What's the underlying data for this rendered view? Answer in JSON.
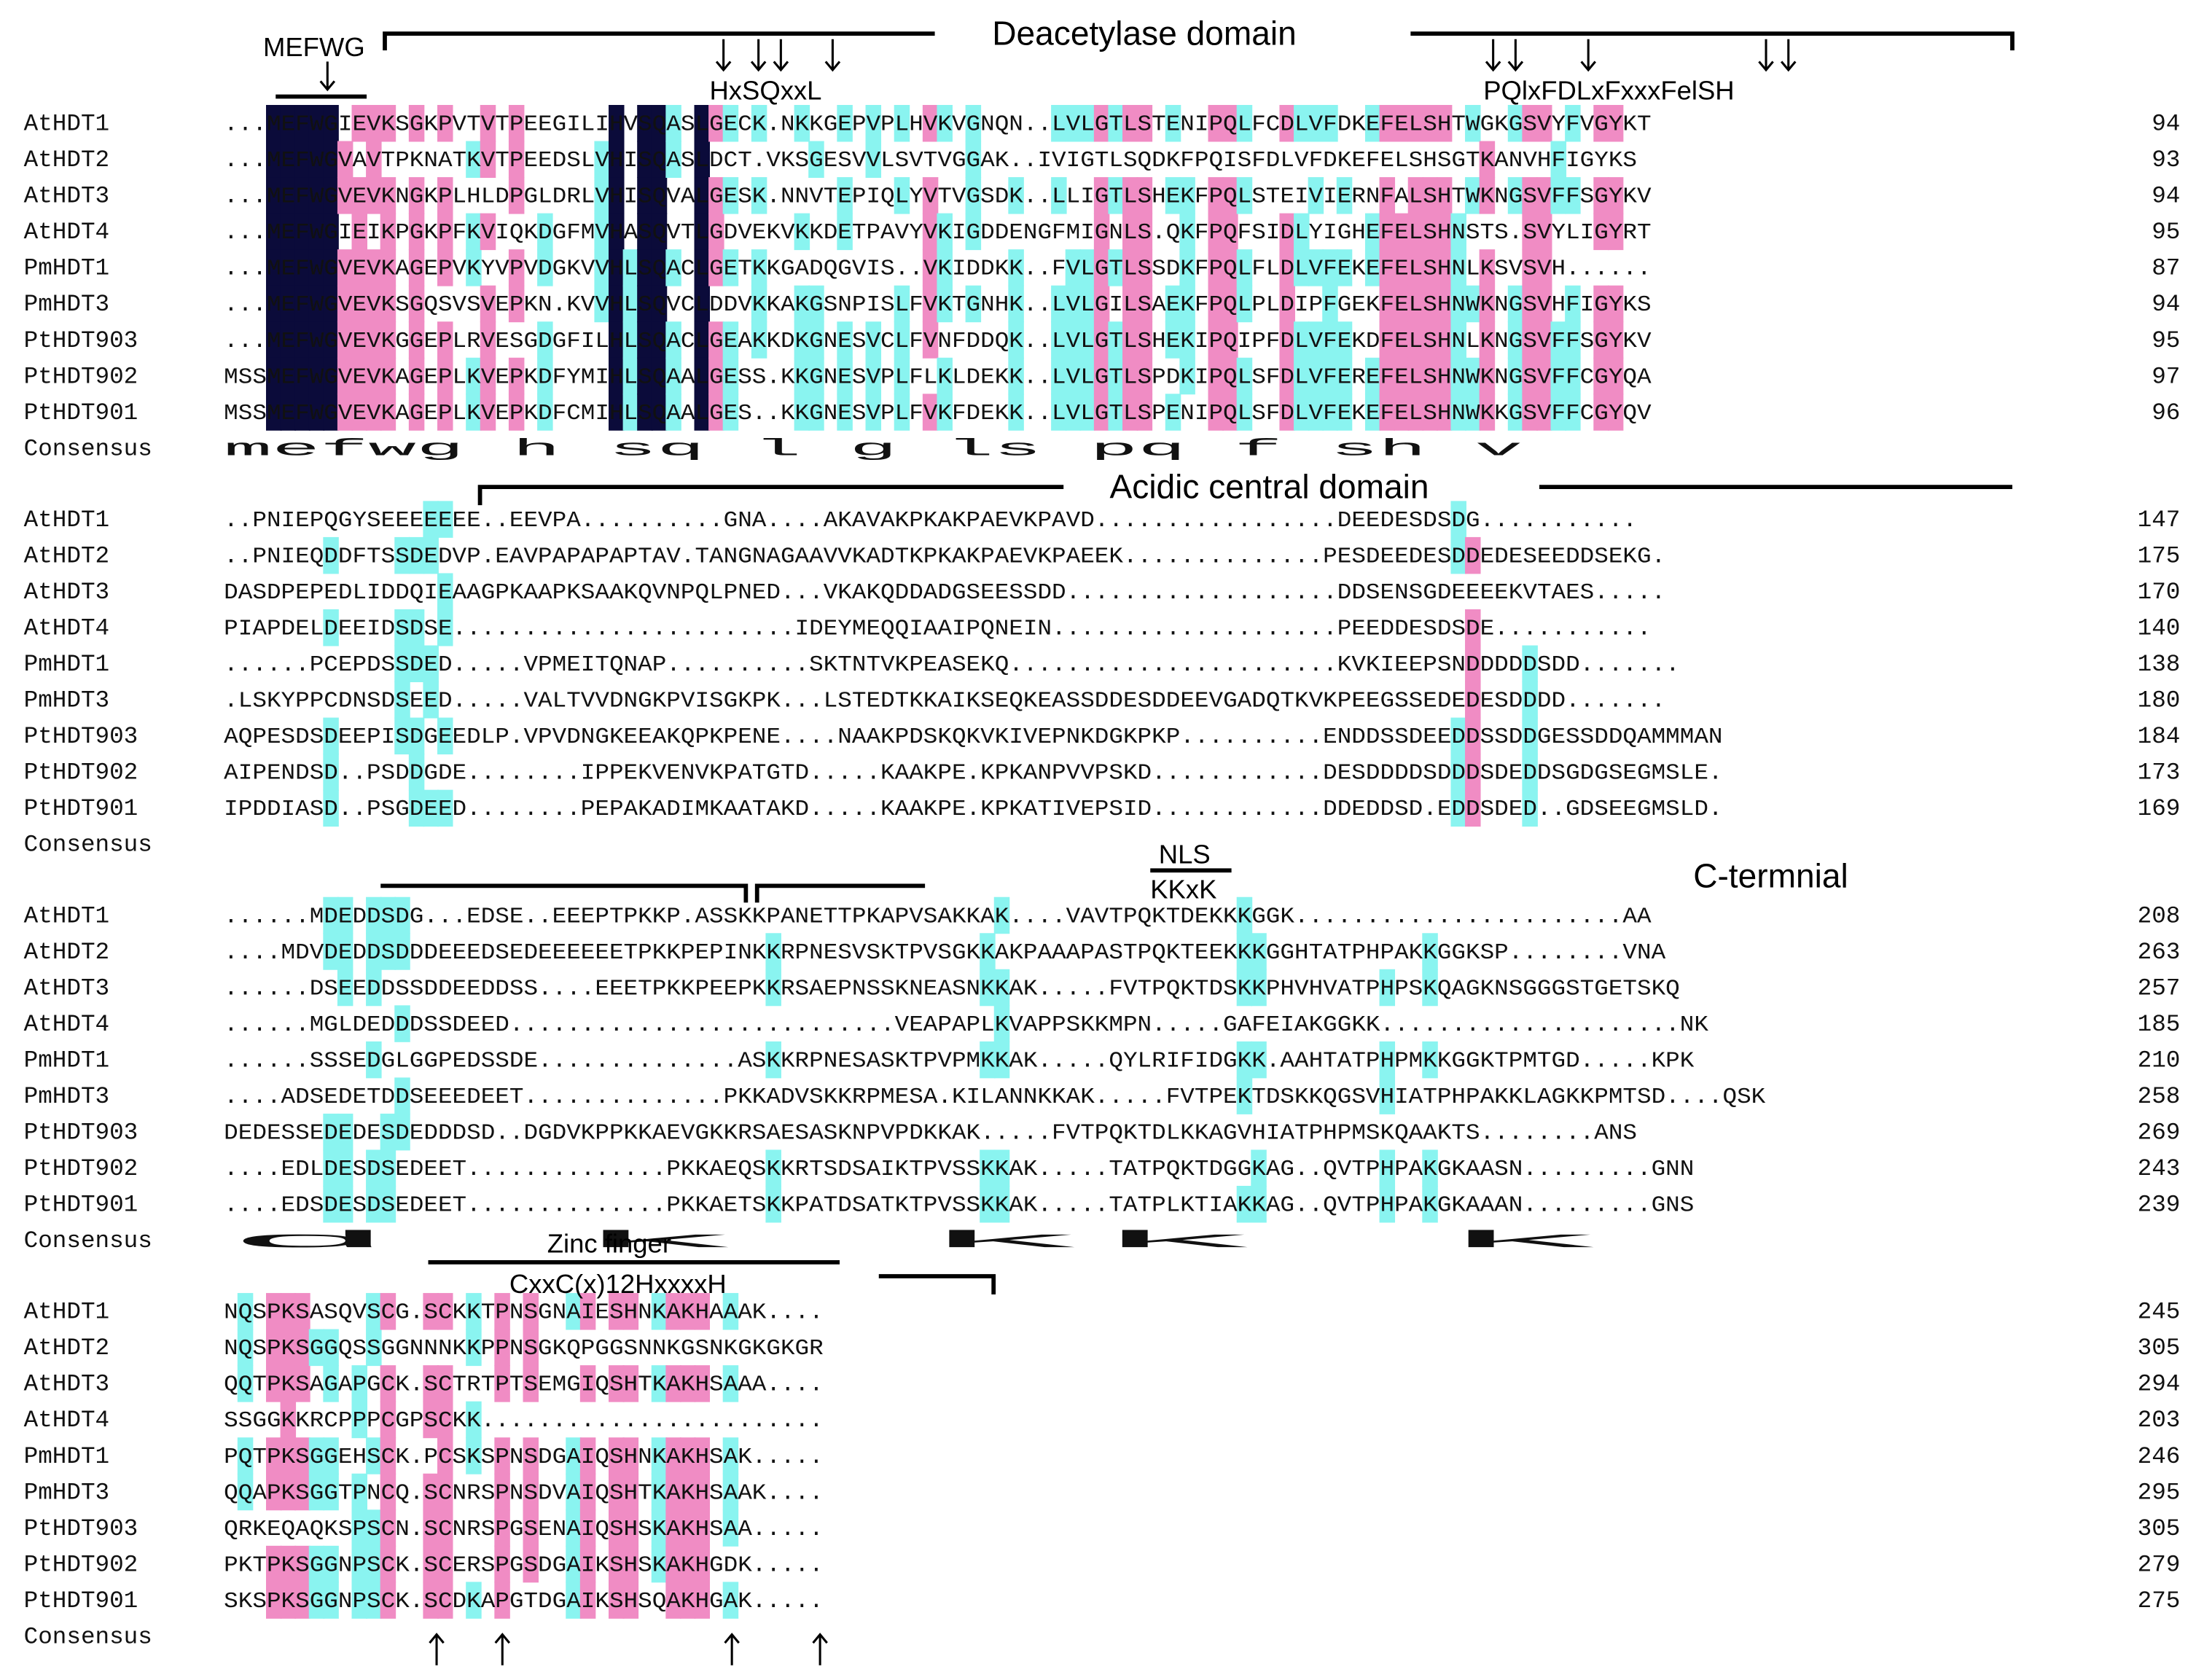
{
  "colors": {
    "black": "#0b0b3a",
    "pink": "#f08cc4",
    "cyan": "#8af4f0"
  },
  "names": [
    "AtHDT1",
    "AtHDT2",
    "AtHDT3",
    "AtHDT4",
    "PmHDT1",
    "PmHDT3",
    "PtHDT903",
    "PtHDT902",
    "PtHDT901"
  ],
  "consensus_label": "Consensus",
  "blocks": [
    {
      "id": "block1",
      "rows": [
        "...MEFWGIEVKSGKPVTVTPEEGILIHVSQASLGECK.NKKGEPVPLHVKVGNQN..LVLGTLSTENIPQLFCDLVFDKEFELSHTWGKGSVYFVGYKT",
        "...MEFWGVAVTPKNATKVTPEEDSLVHISQASLDCT.VKSGESVVLSVTVGGAK..IVIGTLSQDKFPQISFDLVFDKEFELSHSGTKANVHFIGYKS",
        "...MEFWGVEVKNGKPLHLDPGLDRLVHISQVALGESK.NNVTEPIQLYVTVGSDK..LLIGTLSHEKFPQLSTEIVIERNFALSHTWKNGSVFFSGYKV",
        "...MEFWGIEIKPGKPFKVIQKDGFMVHASQVTLGDVEKVKKDETPAVYVKIGDDENGFMIGNLS.QKFPQFSIDLYIGHEFELSHNSTS.SVYLIGYRT",
        "...MEFWGVEVKAGEPVKYVPVDGKVVHLSQACLGETKKGADQGVIS..VKIDDKK..FVLGTLSSDKFPQLFLDLVFEKEFELSHNLKSVSVH......",
        "...MEFWGVEVKSGQSVSVEPKN.KVVHLSQVCLDDVKKAKGSNPISLFVKTGNHK..LVLGILSAEKFPQLPLDIPFGEKFELSHNWKNGSVHFIGYKS",
        "...MEFWGVEVKGGEPLRVESGDGFILHLSQACLGEAKKDKGNESVCLFVNFDDQK..LVLGTLSHEKIPQIPFDLVFEKDFELSHNLKNGSVFFSGYKV",
        "MSSMEFWGVEVKAGEPLKVEPKDFYMIHLSQAALGESS.KKGNESVPLFLKLDEKK..LVLGTLSPDKIPQLSFDLVFEREFELSHNWKNGSVFFCGYQA",
        "MSSMEFWGVEVKAGEPLKVEPKDFCMIHLSQAALGES..KKGNESVPLFVKFDEKK..LVLGTLSPENIPQLSFDLVFEKEFELSHNWKKGSVFFCGYQV"
      ],
      "numbers": [
        "94",
        "93",
        "94",
        "95",
        "87",
        "94",
        "95",
        "97",
        "96"
      ],
      "consensus": "   mefwg                   h sq  l                        g ls   pq         f  sh     v    "
    },
    {
      "id": "block2",
      "rows": [
        "..PNIEPQGYSEEEEEEE..EEVPA..........GNA....AKAVAKPKAKPAEVKPAVD.................DEEDESDSDG...........",
        "..PNIEQDDFTSSDEDVP.EAVPAPAPAPTAV.TANGNAGAAVVKADTKPKAKPAEVKPAEEK..............PESDEEDESDDEDESEEDDSEKG.",
        "DASDPEPEDLIDDQIEAAGPKAAPKSAAKQVNPQLPNED...VKAKQDDADGSEESSDD...................DDSENSGDEEEEKVTAES.....",
        "PIAPDELDEEIDSDSE........................IDEYMEQQIAAIPQNEIN....................PEEDDESDSDE...........",
        "......PCEPDSSDED.....VPMEITQNAP..........SKTNTVKPEASEKQ.......................KVKIEEPSNDDDDDSDD.......",
        ".LSKYPPCDNSDSEED.....VALTVVDNGKPVISGKPK...LSTEDTKKAIKSEQKEASSDDESDDEEVGADQTKVKPEEGSSEDEDESDDDD.......",
        "AQPESDSDEEPISDGEEDLP.VPVDNGKEEAKQPKPENE....NAAKPDSKQKVKIVEPNKDGKPKP..........ENDDSSDEEDDSSDDGESSDDQAMMMAN",
        "AIPENDSD..PSDDGDE........IPPEKVENVKPATGTD.....KAAKPE.KPKANPVVPSKD............DESDDDDSDDDSDEDDSGDGSEGMSLE.",
        "IPDDIASD..PSGDEED........PEPAKADIMKAATAKD.....KAAKPE.KPKATIVEPSID............DDEDDSD.EDDSDED..GDSEEGMSLD."
      ],
      "numbers": [
        "147",
        "175",
        "170",
        "140",
        "138",
        "180",
        "184",
        "173",
        "169"
      ],
      "consensus": ""
    },
    {
      "id": "block3",
      "rows": [
        "......MDEDDSDG...EDSE..EEEPTPKKP.ASSKKPANETTPKAPVSAKKAK....VAVTPQKTDEKKKGGK.......................AA",
        "....MDVDEDDSDDDEEEDSEDEEEEEETPKKPEPINKKRPNESVSKTPVSGKKAKPAAAPASTPQKTEEKKKGGHTATPHPAKKGGKSP........VNA",
        "......DSEEDDSSDDEEDDSS....EEETPKKPEEPKKRSAEPNSSKNEASNKKAK.....FVTPQKTDSKKPHVHVATPHPSKQAGKNSGGGSTGETSKQ",
        "......MGLDEDDDSSDEED...........................VEAPAPLKVAPPSKKMPN.....GAFEIAKGGKK.....................NK",
        "......SSSEDGLGGPEDSSDE..............ASKKRPNESASKTPVPMKKAK.....QYLRIFIDGKK.AAHTATPHPMKKGGKTPMTGD.....KPK",
        "....ADSEDETDDSEEEDEET..............PKKADVSKKRPMESA.KILANNKKAK.....FVTPEKTDSKKQGSVHIATPHPAKKLAGKKPMTSD....QSK",
        "DEDESSEDEDESDEDDDSD..DGDVKPPKKAEVGKKRSAESASKNPVPDKKAK.....FVTPQKTDLKKAGVHIATPHPMSKQAAKTS........ANS",
        "....EDLDESDSEDEET..............PKKAEQSKKRTSDSAIKTPVSSKKAK.....TATPQKTDGGKAG..QVTPHPAKGKAASN.........GNN",
        "....EDSDESDSEDEET..............PKKAETSKKPATDSATKTPVSSKKAK.....TATPLKTIAKKAG..QVTPHPAKGKAAAN.........GNS"
      ],
      "numbers": [
        "208",
        "263",
        "257",
        "185",
        "210",
        "258",
        "269",
        "243",
        "239"
      ],
      "consensus": "     d                                         k      kk                        k                "
    },
    {
      "id": "block4",
      "rows": [
        "NQSPKSASQVSCG.SCKKTPNSGNAIESHNKAKHAAAK....",
        "NQSPKSGGQSSGGNNNKKPPNSGKQPGGSNNKGSNKGKGKGR",
        "QQTPKSAGAPGCK.SCTRTPTSEMGIQSHTKAKHSAAA....",
        "SSGGKKRCPPPCGPSCKK........................",
        "PQTPKSGGEHSCK.PCSKSPNSDGAIQSHNKAKHSAK.....",
        "QQAPKSGGTPNCQ.SCNRSPNSDVAIQSHTKAKHSAAK....",
        "QRKEQAQKSPSCN.SCNRSPGSENAIQSHSKAKHSAA.....",
        "PKTPKSGGNPSCK.SCERSPGSDGAIKSHSKAKHGDK.....",
        "SKSPKSGGNPSCK.SCDKAPGTDGAIKSHSQAKHGAK....."
      ],
      "numbers": [
        "245",
        "305",
        "294",
        "203",
        "246",
        "295",
        "305",
        "279",
        "275"
      ],
      "consensus": ""
    }
  ],
  "annotations": {
    "deacetylase": "Deacetylase  domain",
    "mefwg": "MEFWG",
    "hxsq": "HxSQxxL",
    "pqlx": "PQlxFDLxFxxxFelSH",
    "acidic": "Acidic central domain",
    "nls": "NLS",
    "kkxk": "KKxK",
    "cterm": "C-termnial",
    "zinc": "Zinc finger",
    "cxxc": "CxxC(x)12HxxxxH"
  }
}
